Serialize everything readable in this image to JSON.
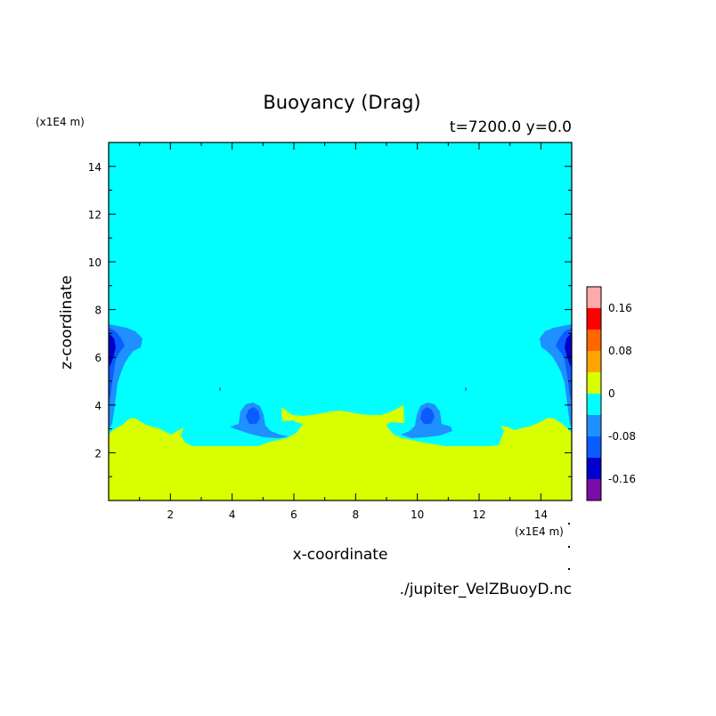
{
  "chart_data": {
    "type": "heatmap",
    "title": "Buoyancy (Drag)",
    "subtitle": "t=7200.0 y=0.0",
    "xlabel": "x-coordinate",
    "ylabel": "z-coordinate",
    "x_unit": "(x1E4 m)",
    "y_unit": "(x1E4 m)",
    "source_file": "./jupiter_VelZBuoyD.nc",
    "xlim": [
      0,
      15
    ],
    "ylim": [
      0,
      15
    ],
    "x_ticks": [
      2,
      4,
      6,
      8,
      10,
      12,
      14
    ],
    "y_ticks": [
      2,
      4,
      6,
      8,
      10,
      12,
      14
    ],
    "colorbar": {
      "levels": [
        {
          "min": -0.2,
          "max": -0.16,
          "color": "#7a0ca8"
        },
        {
          "min": -0.16,
          "max": -0.12,
          "color": "#0000cc"
        },
        {
          "min": -0.12,
          "max": -0.08,
          "color": "#0a5cff"
        },
        {
          "min": -0.08,
          "max": -0.04,
          "color": "#1e90ff"
        },
        {
          "min": -0.04,
          "max": 0.0,
          "color": "#00ffff"
        },
        {
          "min": 0.0,
          "max": 0.04,
          "color": "#d8ff00"
        },
        {
          "min": 0.04,
          "max": 0.08,
          "color": "#ffa500"
        },
        {
          "min": 0.08,
          "max": 0.12,
          "color": "#ff6600"
        },
        {
          "min": 0.12,
          "max": 0.16,
          "color": "#ff0000"
        },
        {
          "min": 0.16,
          "max": 0.2,
          "color": "#ffaaaa"
        }
      ],
      "tick_labels": [
        "0.16",
        "0.08",
        "0",
        "-0.08",
        "-0.16"
      ],
      "tick_values": [
        0.16,
        0.08,
        0.0,
        -0.08,
        -0.16
      ]
    },
    "regions": [
      {
        "name": "background",
        "value_range": "-0.04..0",
        "color": "#00ffff"
      },
      {
        "name": "lower-layer",
        "value_range": "0..0.04",
        "color": "#d8ff00",
        "approx_top_z": 3.2
      },
      {
        "name": "left-edge-blob",
        "value_range": "-0.16..-0.04",
        "x": 0.2,
        "z": 5.5
      },
      {
        "name": "right-edge-blob",
        "value_range": "-0.16..-0.04",
        "x": 14.8,
        "z": 5.5
      },
      {
        "name": "left-inner-blob",
        "value_range": "-0.12..-0.04",
        "x": 4.6,
        "z": 3.6
      },
      {
        "name": "right-inner-blob",
        "value_range": "-0.12..-0.04",
        "x": 10.4,
        "z": 3.6
      }
    ]
  }
}
